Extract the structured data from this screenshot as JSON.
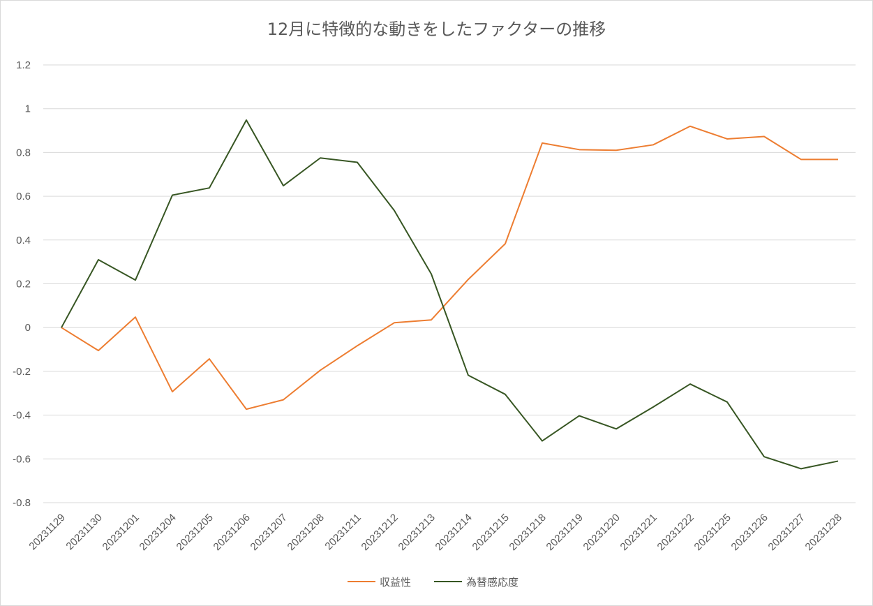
{
  "chart_data": {
    "type": "line",
    "title": "12月に特徴的な動きをしたファクターの推移",
    "xlabel": "",
    "ylabel": "",
    "ylim": [
      -0.8,
      1.2
    ],
    "yticks": [
      1.2,
      1,
      0.8,
      0.6,
      0.4,
      0.2,
      0,
      -0.2,
      -0.4,
      -0.6,
      -0.8
    ],
    "grid": true,
    "legend_position": "bottom",
    "categories": [
      "20231129",
      "20231130",
      "20231201",
      "20231204",
      "20231205",
      "20231206",
      "20231207",
      "20231208",
      "20231211",
      "20231212",
      "20231213",
      "20231214",
      "20231215",
      "20231218",
      "20231219",
      "20231220",
      "20231221",
      "20231222",
      "20231225",
      "20231226",
      "20231227",
      "20231228"
    ],
    "series": [
      {
        "name": "収益性",
        "color": "#ED7D31",
        "values": [
          0,
          -0.105,
          0.048,
          -0.293,
          -0.143,
          -0.373,
          -0.33,
          -0.195,
          -0.083,
          0.022,
          0.035,
          0.22,
          0.383,
          0.843,
          0.813,
          0.81,
          0.835,
          0.92,
          0.862,
          0.873,
          0.768,
          0.768
        ]
      },
      {
        "name": "為替感応度",
        "color": "#375623",
        "values": [
          0,
          0.31,
          0.217,
          0.605,
          0.638,
          0.948,
          0.648,
          0.775,
          0.755,
          0.535,
          0.245,
          -0.218,
          -0.305,
          -0.518,
          -0.403,
          -0.463,
          -0.363,
          -0.258,
          -0.34,
          -0.59,
          -0.645,
          -0.61
        ]
      }
    ]
  }
}
